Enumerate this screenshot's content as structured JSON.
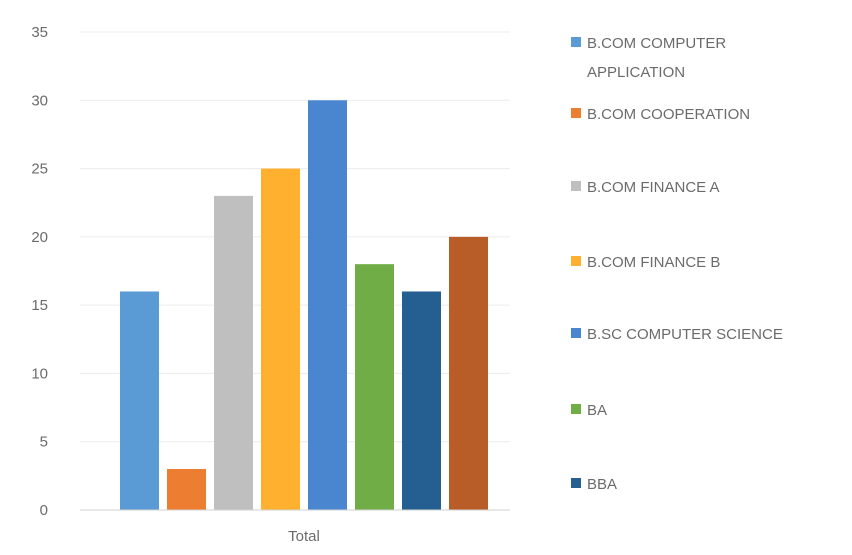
{
  "chart_data": {
    "type": "bar",
    "categories": [
      "Total"
    ],
    "series": [
      {
        "name": "B.COM COMPUTER APPLICATION",
        "values": [
          16
        ],
        "color": "#5b9bd5"
      },
      {
        "name": "B.COM COOPERATION",
        "values": [
          3
        ],
        "color": "#ed7d31"
      },
      {
        "name": "B.COM FINANCE A",
        "values": [
          23
        ],
        "color": "#bfbfbf"
      },
      {
        "name": "B.COM FINANCE B",
        "values": [
          25
        ],
        "color": "#ffb02e"
      },
      {
        "name": "B.SC COMPUTER SCIENCE",
        "values": [
          30
        ],
        "color": "#4a86d0"
      },
      {
        "name": "BA",
        "values": [
          18
        ],
        "color": "#70ad47"
      },
      {
        "name": "BBA",
        "values": [
          16
        ],
        "color": "#255e91"
      },
      {
        "name": "",
        "values": [
          20
        ],
        "color": "#b85d27"
      }
    ],
    "yticks": [
      "0",
      "5",
      "10",
      "15",
      "20",
      "25",
      "30",
      "35"
    ],
    "ylim": [
      0,
      35
    ],
    "title": "",
    "xlabel": "",
    "ylabel": "",
    "grid": true,
    "legend_position": "right"
  }
}
